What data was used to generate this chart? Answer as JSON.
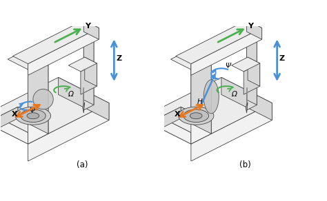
{
  "title_a": "(a)",
  "title_b": "(b)",
  "bg_color": "#ffffff",
  "arrow_orange": "#E8761E",
  "arrow_green": "#4CAF50",
  "arrow_blue": "#4A90D9",
  "lc": "#444444",
  "face_light": "#f2f2f2",
  "face_mid": "#d8d8d8",
  "face_dark": "#b8b8b8",
  "face_top": "#ececec",
  "label_x": "X",
  "label_y": "Y",
  "label_z": "Z",
  "label_psi": "Ψ",
  "label_omega": "Ω",
  "label_h": "H",
  "figsize": [
    4.74,
    2.92
  ],
  "dpi": 100
}
